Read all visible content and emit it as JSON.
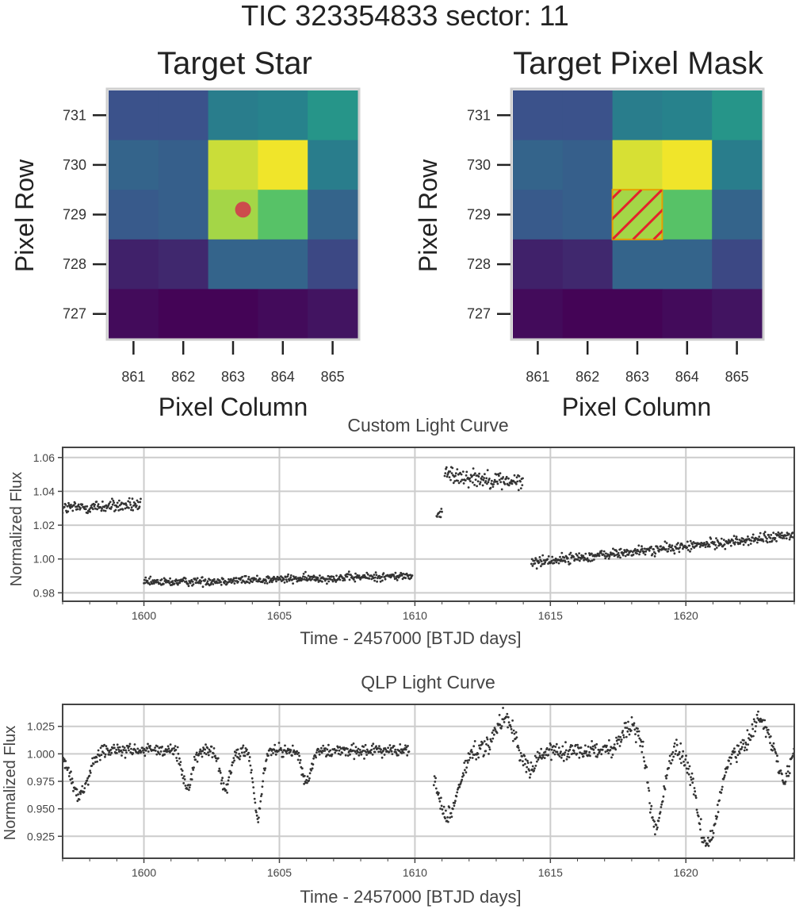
{
  "figure_title": "TIC 323354833 sector: 11",
  "chart_data": [
    {
      "type": "heatmap",
      "title": "Target Star",
      "xlabel": "Pixel Column",
      "ylabel": "Pixel Row",
      "columns": [
        861,
        862,
        863,
        864,
        865
      ],
      "rows": [
        731,
        730,
        729,
        728,
        727
      ],
      "values": [
        [
          0.25,
          0.25,
          0.42,
          0.44,
          0.52
        ],
        [
          0.32,
          0.3,
          0.92,
          0.98,
          0.42
        ],
        [
          0.28,
          0.3,
          0.86,
          0.72,
          0.32
        ],
        [
          0.1,
          0.12,
          0.32,
          0.32,
          0.22
        ],
        [
          0.03,
          0.01,
          0.01,
          0.03,
          0.06
        ]
      ],
      "target_marker": {
        "column": 863.2,
        "row": 729.1,
        "color": "#cc4c4c"
      },
      "colormap": "viridis"
    },
    {
      "type": "heatmap",
      "title": "Target Pixel Mask",
      "xlabel": "Pixel Column",
      "ylabel": "Pixel Row",
      "columns": [
        861,
        862,
        863,
        864,
        865
      ],
      "rows": [
        731,
        730,
        729,
        728,
        727
      ],
      "values": [
        [
          0.25,
          0.25,
          0.42,
          0.44,
          0.52
        ],
        [
          0.32,
          0.3,
          0.94,
          0.98,
          0.42
        ],
        [
          0.28,
          0.3,
          0.86,
          0.72,
          0.32
        ],
        [
          0.1,
          0.12,
          0.32,
          0.32,
          0.22
        ],
        [
          0.03,
          0.01,
          0.01,
          0.03,
          0.06
        ]
      ],
      "mask_pixel": {
        "column": 863,
        "row": 729,
        "hatch_color": "#e3242b"
      },
      "colormap": "viridis"
    },
    {
      "type": "scatter",
      "title": "Custom Light Curve",
      "xlabel": "Time - 2457000 [BTJD days]",
      "ylabel": "Normalized Flux",
      "xlim": [
        1597,
        1624
      ],
      "ylim": [
        0.975,
        1.066
      ],
      "xticks": [
        1600,
        1605,
        1610,
        1615,
        1620
      ],
      "yticks": [
        0.98,
        1.0,
        1.02,
        1.04,
        1.06
      ],
      "ytick_labels": [
        "0.98",
        "1.00",
        "1.02",
        "1.04",
        "1.06"
      ],
      "segments": [
        {
          "x_start": 1597.0,
          "x_end": 1599.9,
          "level_start": 1.03,
          "level_end": 1.032,
          "scatter": 0.004
        },
        {
          "x_start": 1600.0,
          "x_end": 1609.9,
          "level_start": 0.986,
          "level_end": 0.99,
          "scatter": 0.0025
        },
        {
          "x_start": 1610.8,
          "x_end": 1611.0,
          "level_start": 1.025,
          "level_end": 1.028,
          "scatter": 0.003
        },
        {
          "x_start": 1611.1,
          "x_end": 1614.0,
          "level_start": 1.05,
          "level_end": 1.045,
          "scatter": 0.005
        },
        {
          "x_start": 1614.3,
          "x_end": 1624.0,
          "level_start": 0.998,
          "level_end": 1.014,
          "scatter": 0.003
        }
      ]
    },
    {
      "type": "scatter",
      "title": "QLP Light Curve",
      "xlabel": "Time - 2457000 [BTJD days]",
      "ylabel": "Normalized Flux",
      "xlim": [
        1597,
        1624
      ],
      "ylim": [
        0.905,
        1.045
      ],
      "xticks": [
        1600,
        1605,
        1610,
        1615,
        1620
      ],
      "yticks": [
        0.925,
        0.95,
        0.975,
        1.0,
        1.025
      ],
      "ytick_labels": [
        "0.925",
        "0.950",
        "0.975",
        "1.000",
        "1.025"
      ],
      "segments": [
        {
          "x_start": 1597.0,
          "x_end": 1609.8,
          "baseline": 1.003,
          "scatter": 0.006
        },
        {
          "x_start": 1610.7,
          "x_end": 1624.0,
          "baseline": 1.003,
          "scatter": 0.008
        }
      ],
      "dips": [
        {
          "center": 1597.6,
          "depth": 0.04,
          "width": 0.45
        },
        {
          "center": 1601.6,
          "depth": 0.035,
          "width": 0.25
        },
        {
          "center": 1603.0,
          "depth": 0.035,
          "width": 0.25
        },
        {
          "center": 1604.2,
          "depth": 0.06,
          "width": 0.22
        },
        {
          "center": 1606.0,
          "depth": 0.03,
          "width": 0.25
        },
        {
          "center": 1611.2,
          "depth": 0.06,
          "width": 0.55
        },
        {
          "center": 1614.2,
          "depth": 0.02,
          "width": 0.3
        },
        {
          "center": 1618.9,
          "depth": 0.07,
          "width": 0.35
        },
        {
          "center": 1620.8,
          "depth": 0.085,
          "width": 0.55
        },
        {
          "center": 1623.6,
          "depth": 0.025,
          "width": 0.25
        }
      ],
      "bumps": [
        {
          "center": 1613.3,
          "height": 0.028,
          "width": 0.45
        },
        {
          "center": 1618.0,
          "height": 0.022,
          "width": 0.45
        },
        {
          "center": 1622.7,
          "height": 0.028,
          "width": 0.4
        }
      ]
    }
  ]
}
